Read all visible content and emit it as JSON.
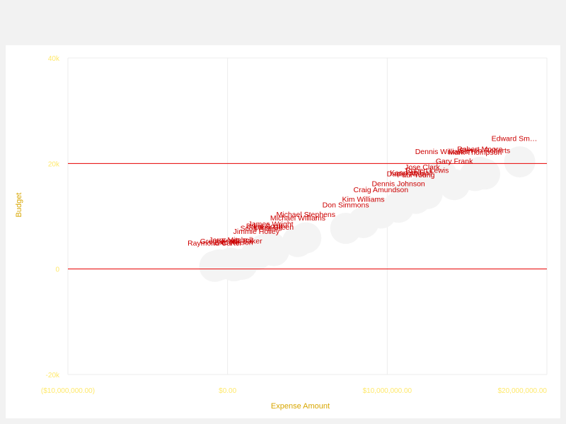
{
  "chart_data": {
    "type": "scatter",
    "xlabel": "Expense Amount",
    "ylabel": "Budget",
    "xlim": [
      -10000000,
      20000000
    ],
    "ylim": [
      -20000,
      40000
    ],
    "x_ticks": [
      {
        "value": -10000000,
        "label": "($10,000,000.00)"
      },
      {
        "value": 0,
        "label": "$0.00"
      },
      {
        "value": 10000000,
        "label": "$10,000,000.00"
      },
      {
        "value": 20000000,
        "label": "$20,000,000.00"
      }
    ],
    "y_ticks": [
      {
        "value": -20000,
        "label": "-20k"
      },
      {
        "value": 0,
        "label": "0"
      },
      {
        "value": 20000,
        "label": "20k"
      },
      {
        "value": 40000,
        "label": "40k"
      }
    ],
    "reference_lines_y": [
      0,
      20000
    ],
    "colors": {
      "label": "#cc0000",
      "highlight_label": "#d8a600",
      "bubble": "#f4f4f4",
      "reference_line": "#e80000",
      "grid": "#ececec",
      "tick": "#ffe96b"
    },
    "points": [
      {
        "name": "Edward Sm…",
        "x": 18300000,
        "y": 24800,
        "highlight": true
      },
      {
        "name": "Dennis Johnson",
        "x": 10700000,
        "y": 16200
      },
      {
        "name": "Craig Amundson",
        "x": 9600000,
        "y": 15100
      },
      {
        "name": "Kim Williams",
        "x": 8500000,
        "y": 13300
      },
      {
        "name": "Don Simmons",
        "x": 7400000,
        "y": 12200
      },
      {
        "name": "Michael Stephens",
        "x": 4900000,
        "y": 10400
      },
      {
        "name": "Michael Williams",
        "x": 4400000,
        "y": 9700
      },
      {
        "name": "Jimmie Holley",
        "x": 1800000,
        "y": 7200
      },
      {
        "name": "Gary Frank",
        "x": 14200000,
        "y": 20500
      },
      {
        "name": "Dennis Williams",
        "x": 13400000,
        "y": 22300
      },
      {
        "name": "Robert Moore",
        "x": 15800000,
        "y": 22800
      },
      {
        "name": "Steven Roberts",
        "x": 16100000,
        "y": 22500
      },
      {
        "name": "Mark Thompson",
        "x": 15500000,
        "y": 22200
      },
      {
        "name": "Jose Clark",
        "x": 12200000,
        "y": 19400
      },
      {
        "name": "Robert Lewis",
        "x": 12500000,
        "y": 18800
      },
      {
        "name": "Kenneth Hall",
        "x": 11500000,
        "y": 18300
      },
      {
        "name": "Daniel Allen",
        "x": 11200000,
        "y": 18100
      },
      {
        "name": "Paul Young",
        "x": 11800000,
        "y": 17900
      },
      {
        "name": "James Wright",
        "x": 2700000,
        "y": 8600
      },
      {
        "name": "Brian Scott",
        "x": 2300000,
        "y": 8200
      },
      {
        "name": "Larry Green",
        "x": 2900000,
        "y": 8000
      },
      {
        "name": "Scott Adams",
        "x": 2100000,
        "y": 7800
      },
      {
        "name": "Frank Baker",
        "x": 900000,
        "y": 5400
      },
      {
        "name": "Eric Nelson",
        "x": 400000,
        "y": 5100
      },
      {
        "name": "Gregory Hill",
        "x": -500000,
        "y": 5300
      },
      {
        "name": "Raymond Carter",
        "x": -800000,
        "y": 5000
      },
      {
        "name": "Jerry Mitchell",
        "x": 200000,
        "y": 5600
      }
    ]
  }
}
